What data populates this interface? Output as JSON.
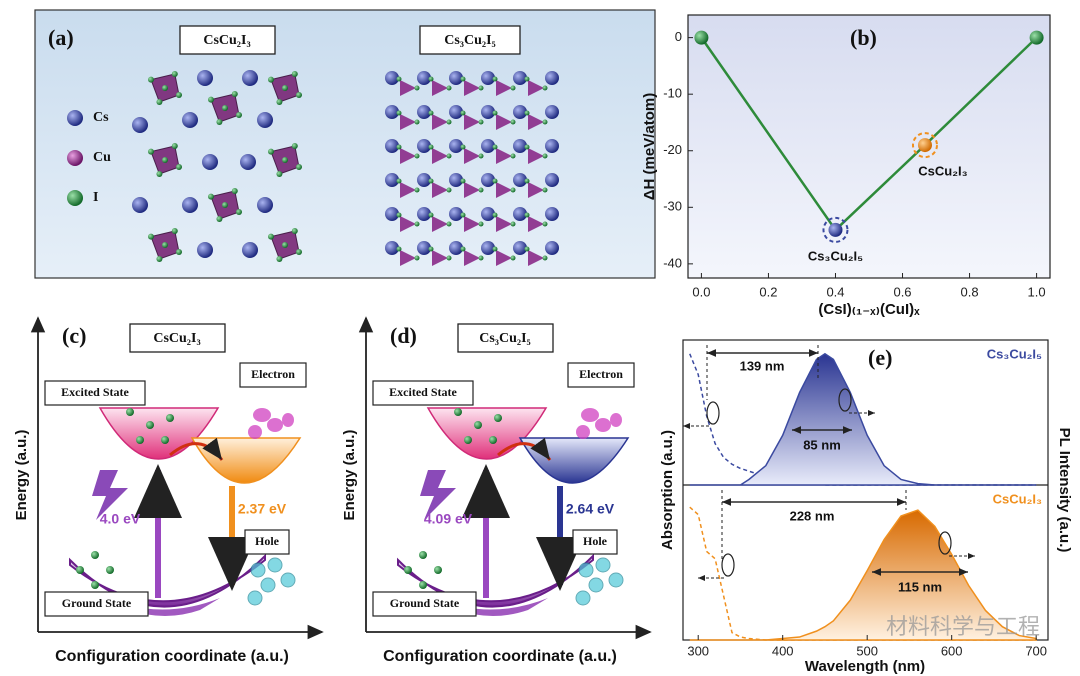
{
  "panel_a": {
    "label": "(a)",
    "structures": [
      "CsCu₂I₃",
      "Cs₃Cu₂I₅"
    ],
    "legend": [
      "Cs",
      "Cu",
      "I"
    ]
  },
  "chart_data": [
    {
      "type": "line",
      "label": "(b)",
      "x": [
        0,
        0.4,
        0.667,
        1
      ],
      "values": [
        0,
        -34,
        -19,
        0
      ],
      "color": "#2e8b3a",
      "point_colors": [
        "#2e8b3a",
        "#3b4aa0",
        "#f0901e",
        "#2e8b3a"
      ],
      "point_labels": [
        null,
        "Cs₃Cu₂I₅",
        "CsCu₂I₃",
        null
      ],
      "xlim": [
        -0.04,
        1.04
      ],
      "xticks": [
        {
          "value": 0,
          "label": "0.0"
        },
        0.2,
        0.4,
        0.6,
        0.8,
        {
          "value": 1,
          "label": "1.0"
        }
      ],
      "ylim": [
        -42.5,
        4
      ],
      "yticks": [
        0,
        -10,
        -20,
        -30,
        -40
      ],
      "xlabel": "(CsI)₍₁₋ₓ₎(CuI)ₓ",
      "ylabel": "ΔH (meV/atom)"
    },
    {
      "type": "line",
      "label": "(e)",
      "title": "Cs₃Cu₂I₅",
      "x": [
        290,
        300,
        310,
        320,
        330,
        340,
        350,
        360,
        380,
        400,
        420,
        440,
        450,
        460,
        480,
        500,
        520,
        540,
        560,
        580,
        600,
        620,
        640,
        660,
        680,
        700
      ],
      "series": [
        {
          "color": "#3b4aa0",
          "style": "dashed",
          "values": [
            0.95,
            0.8,
            0.5,
            0.3,
            0.2,
            0.15,
            0.12,
            0.1,
            0.06,
            0.03,
            0.02,
            0.01,
            0,
            0,
            0,
            0,
            0,
            0,
            0,
            0,
            0,
            0,
            0,
            0,
            0,
            0
          ]
        },
        {
          "color": "#3b4aa0",
          "style": "filled",
          "values": [
            0,
            0,
            0,
            0,
            0,
            0,
            0,
            0.04,
            0.14,
            0.36,
            0.67,
            0.91,
            0.95,
            0.91,
            0.67,
            0.36,
            0.14,
            0.04,
            0.01,
            0,
            0,
            0,
            0,
            0,
            0,
            0
          ]
        }
      ],
      "xlim": [
        282,
        714
      ],
      "ylim": [
        0,
        1.05
      ],
      "gap_label": "139 nm",
      "fwhm_label": "85 nm"
    },
    {
      "type": "line",
      "title": "CsCu₂I₃",
      "x": [
        290,
        300,
        310,
        320,
        330,
        340,
        350,
        360,
        380,
        400,
        420,
        440,
        450,
        460,
        480,
        500,
        520,
        540,
        560,
        580,
        600,
        620,
        640,
        660,
        680,
        700
      ],
      "series": [
        {
          "color": "#f0901e",
          "style": "dashed",
          "values": [
            0.9,
            0.85,
            0.6,
            0.55,
            0.3,
            0.05,
            0.02,
            0.01,
            0,
            0,
            0,
            0,
            0,
            0,
            0,
            0,
            0,
            0,
            0,
            0,
            0,
            0,
            0,
            0,
            0,
            0
          ]
        },
        {
          "color": "#f0901e",
          "style": "filled",
          "values": [
            0,
            0,
            0,
            0,
            0,
            0,
            0,
            0,
            0,
            0.01,
            0.02,
            0.06,
            0.09,
            0.13,
            0.27,
            0.47,
            0.68,
            0.84,
            0.88,
            0.77,
            0.58,
            0.37,
            0.2,
            0.09,
            0.03,
            0.01
          ]
        }
      ],
      "xlim": [
        282,
        714
      ],
      "ylim": [
        0,
        1.05
      ],
      "xticks": [
        300,
        400,
        500,
        600,
        700
      ],
      "xlabel": "Wavelength (nm)",
      "ylabel": "Absorption (a.u.)",
      "y2label": "PL Intensity (a.u.)",
      "gap_label": "228 nm",
      "fwhm_label": "115 nm"
    }
  ],
  "panel_c": {
    "label": "(c)",
    "compound": "CsCu₂I₃",
    "excited": "Excited State",
    "ground": "Ground State",
    "electron": "Electron",
    "hole": "Hole",
    "absorption_energy": "4.0 eV",
    "emission_energy": "2.37 eV",
    "y_label": "Energy (a.u.)",
    "x_label": "Configuration coordinate (a.u.)"
  },
  "panel_d": {
    "label": "(d)",
    "compound": "Cs₃Cu₂I₅",
    "excited": "Excited State",
    "ground": "Ground State",
    "electron": "Electron",
    "hole": "Hole",
    "absorption_energy": "4.09 eV",
    "emission_energy": "2.64 eV",
    "y_label": "Energy (a.u.)",
    "x_label": "Configuration coordinate (a.u.)"
  },
  "watermark": "材料科学与工程"
}
